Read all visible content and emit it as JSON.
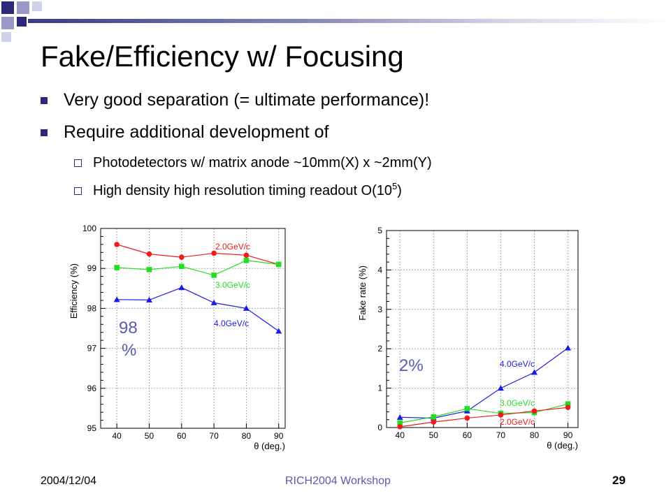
{
  "slide": {
    "title": "Fake/Efficiency w/ Focusing",
    "bullets": [
      "Very good separation (= ultimate performance)!",
      "Require additional development of"
    ],
    "sub_bullets": [
      "Photodetectors w/ matrix anode ~10mm(X) x ~2mm(Y)",
      "High density high resolution timing readout O(10",
      "5",
      ")"
    ],
    "footer": {
      "date": "2004/12/04",
      "center": "RICH2004 Workshop",
      "page": "29"
    },
    "accent_colors": {
      "bullet": "#2b2b7a",
      "footer_center": "#5a5ab0",
      "annotation": "#5a5ab0"
    }
  },
  "chart_data": [
    {
      "type": "line",
      "xlabel": "θ (deg.)",
      "ylabel": "Efficiency (%)",
      "x": [
        40,
        50,
        60,
        70,
        80,
        90
      ],
      "x_ticks": [
        "40",
        "50",
        "60",
        "70",
        "80",
        "90"
      ],
      "xlim": [
        35,
        92
      ],
      "ylim": [
        95,
        100
      ],
      "y_ticks": [
        "95",
        "96",
        "97",
        "98",
        "99",
        "100"
      ],
      "grid": true,
      "series": [
        {
          "name": "2.0GeV/c",
          "color": "#ee1c1c",
          "marker": "circle",
          "values": [
            99.6,
            99.36,
            99.28,
            99.38,
            99.33,
            99.1
          ]
        },
        {
          "name": "3.0GeV/c",
          "color": "#22dd22",
          "marker": "square",
          "values": [
            99.02,
            98.97,
            99.05,
            98.83,
            99.2,
            99.1
          ]
        },
        {
          "name": "4.0GeV/c",
          "color": "#1a1ae6",
          "marker": "triangle",
          "values": [
            98.22,
            98.21,
            98.52,
            98.14,
            98.0,
            97.43
          ]
        }
      ],
      "annotation": {
        "text_line1": "98",
        "text_line2": "%"
      }
    },
    {
      "type": "line",
      "xlabel": "θ (deg.)",
      "ylabel": "Fake rate (%)",
      "x": [
        40,
        50,
        60,
        70,
        80,
        90
      ],
      "x_ticks": [
        "40",
        "50",
        "60",
        "70",
        "80",
        "90"
      ],
      "xlim": [
        36,
        93
      ],
      "ylim": [
        0,
        5
      ],
      "y_ticks": [
        "0",
        "1",
        "2",
        "3",
        "4",
        "5"
      ],
      "grid": true,
      "series": [
        {
          "name": "4.0GeV/c",
          "color": "#1a1ae6",
          "marker": "triangle",
          "values": [
            0.26,
            0.24,
            0.42,
            1.0,
            1.4,
            2.02
          ]
        },
        {
          "name": "3.0GeV/c",
          "color": "#22dd22",
          "marker": "square",
          "values": [
            0.12,
            0.27,
            0.48,
            0.36,
            0.38,
            0.6
          ]
        },
        {
          "name": "2.0GeV/c",
          "color": "#ee1c1c",
          "marker": "circle",
          "values": [
            0.02,
            0.14,
            0.24,
            0.32,
            0.42,
            0.51
          ]
        }
      ],
      "annotation": {
        "text_line1": "2%"
      }
    }
  ]
}
